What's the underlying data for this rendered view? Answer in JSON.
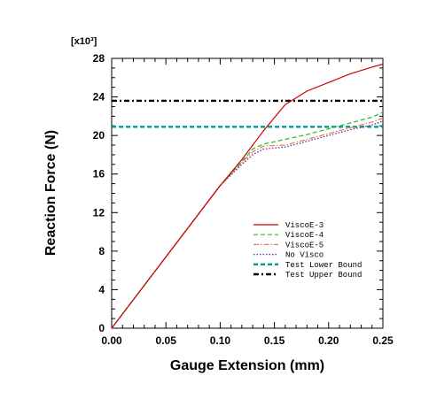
{
  "chart_data": {
    "type": "line",
    "xlabel": "Gauge Extension (mm)",
    "ylabel": "Reaction Force (N)",
    "y_multiplier_label": "[x10³]",
    "xlim": [
      0.0,
      0.25
    ],
    "ylim": [
      0,
      28
    ],
    "x_ticks": [
      "0.00",
      "0.05",
      "0.10",
      "0.15",
      "0.20",
      "0.25"
    ],
    "y_ticks": [
      "0",
      "4",
      "8",
      "12",
      "16",
      "20",
      "24",
      "28"
    ],
    "legend_position": "lower-right",
    "grid": false,
    "series": [
      {
        "name": "ViscoE-3",
        "color": "#cc0000",
        "style": "solid",
        "x": [
          0.0,
          0.05,
          0.1,
          0.12,
          0.14,
          0.16,
          0.18,
          0.2,
          0.22,
          0.24,
          0.25
        ],
        "y": [
          0,
          7.4,
          14.8,
          17.5,
          20.5,
          23.2,
          24.6,
          25.5,
          26.4,
          27.1,
          27.4
        ]
      },
      {
        "name": "ViscoE-4",
        "color": "#22bb22",
        "style": "dashed",
        "x": [
          0.0,
          0.05,
          0.1,
          0.12,
          0.13,
          0.14,
          0.16,
          0.18,
          0.2,
          0.22,
          0.24,
          0.25
        ],
        "y": [
          0,
          7.4,
          14.8,
          17.3,
          18.6,
          19.1,
          19.6,
          20.1,
          20.7,
          21.3,
          21.9,
          22.4
        ]
      },
      {
        "name": "ViscoE-5",
        "color": "#e0804a",
        "style": "dashdot",
        "x": [
          0.0,
          0.05,
          0.1,
          0.12,
          0.13,
          0.14,
          0.16,
          0.18,
          0.2,
          0.22,
          0.24,
          0.25
        ],
        "y": [
          0,
          7.4,
          14.8,
          17.2,
          18.3,
          18.9,
          19.0,
          19.6,
          20.2,
          20.8,
          21.4,
          21.8
        ]
      },
      {
        "name": "No Visco",
        "color": "#7030a0",
        "style": "dotted",
        "x": [
          0.0,
          0.05,
          0.1,
          0.12,
          0.13,
          0.14,
          0.16,
          0.18,
          0.2,
          0.22,
          0.24,
          0.25
        ],
        "y": [
          0,
          7.4,
          14.8,
          17.0,
          18.0,
          18.6,
          18.8,
          19.4,
          20.0,
          20.6,
          21.1,
          21.5
        ]
      },
      {
        "name": "Test Lower Bound",
        "color": "#009999",
        "style": "thickdash",
        "x": [
          0.0,
          0.25
        ],
        "y": [
          20.9,
          20.9
        ]
      },
      {
        "name": "Test Upper Bound",
        "color": "#000000",
        "style": "thickdashdot",
        "x": [
          0.0,
          0.25
        ],
        "y": [
          23.6,
          23.6
        ]
      }
    ]
  }
}
